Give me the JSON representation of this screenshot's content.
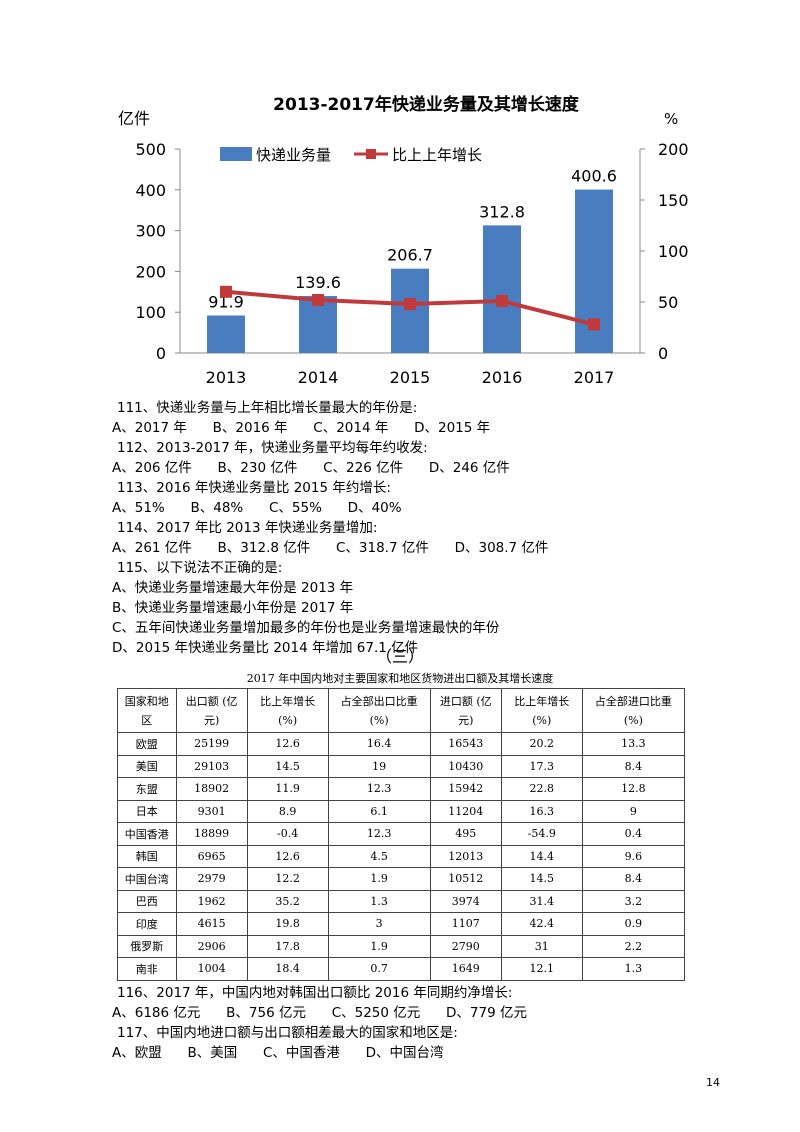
{
  "chart_data": {
    "type": "bar+line",
    "title": "2013-2017年快递业务量及其增长速度",
    "ylabel_left": "亿件",
    "ylabel_right": "%",
    "categories": [
      "2013",
      "2014",
      "2015",
      "2016",
      "2017"
    ],
    "series": [
      {
        "name": "快递业务量",
        "type": "bar",
        "axis": "left",
        "values": [
          91.9,
          139.6,
          206.7,
          312.8,
          400.6
        ],
        "labels": [
          "91.9",
          "139.6",
          "206.7",
          "312.8",
          "400.6"
        ],
        "color": "#4a7cc0"
      },
      {
        "name": "比上上年增长",
        "type": "line",
        "axis": "right",
        "values": [
          60,
          52,
          48,
          51,
          28
        ],
        "color": "#c0393b"
      }
    ],
    "yticks_left": [
      "0",
      "100",
      "200",
      "300",
      "400",
      "500"
    ],
    "yticks_right": [
      "0",
      "50",
      "100",
      "150",
      "200"
    ],
    "ylim_left": [
      0,
      500
    ],
    "ylim_right": [
      0,
      200
    ],
    "legend": "top"
  },
  "questions": [
    {
      "text": "111、快递业务量与上年相比增长量最大的年份是:",
      "indent": true
    },
    {
      "text": "A、2017 年      B、2016 年      C、2014 年      D、2015 年",
      "indent": false
    },
    {
      "text": "112、2013-2017 年，快递业务量平均每年约收发:",
      "indent": true
    },
    {
      "text": "A、206 亿件      B、230 亿件      C、226 亿件      D、246 亿件",
      "indent": false
    },
    {
      "text": "113、2016 年快递业务量比 2015 年约增长:",
      "indent": true
    },
    {
      "text": "A、51%      B、48%      C、55%      D、40%",
      "indent": false
    },
    {
      "text": "114、2017 年比 2013 年快递业务量增加:",
      "indent": true
    },
    {
      "text": "A、261 亿件      B、312.8 亿件      C、318.7 亿件      D、308.7 亿件",
      "indent": false
    },
    {
      "text": "115、以下说法不正确的是:",
      "indent": true
    },
    {
      "text": "A、快递业务量增速最大年份是 2013 年",
      "indent": false
    },
    {
      "text": "B、快递业务量增速最小年份是 2017 年",
      "indent": false
    },
    {
      "text": "C、五年间快递业务量增加最多的年份也是业务量增速最快的年份",
      "indent": false
    },
    {
      "text": "D、2015 年快递业务量比 2014 年增加 67.1 亿件",
      "indent": false
    }
  ],
  "section_label": "（三）",
  "table": {
    "caption": "2017 年中国内地对主要国家和地区货物进出口额及其增长速度",
    "headers": [
      "国家和地区",
      "出口额 (亿元)",
      "比上年增长 (%)",
      "占全部出口比重 (%)",
      "进口额 (亿元)",
      "比上年增长 (%)",
      "占全部进口比重 (%)"
    ],
    "rows": [
      [
        "欧盟",
        "25199",
        "12.6",
        "16.4",
        "16543",
        "20.2",
        "13.3"
      ],
      [
        "美国",
        "29103",
        "14.5",
        "19",
        "10430",
        "17.3",
        "8.4"
      ],
      [
        "东盟",
        "18902",
        "11.9",
        "12.3",
        "15942",
        "22.8",
        "12.8"
      ],
      [
        "日本",
        "9301",
        "8.9",
        "6.1",
        "11204",
        "16.3",
        "9"
      ],
      [
        "中国香港",
        "18899",
        "-0.4",
        "12.3",
        "495",
        "-54.9",
        "0.4"
      ],
      [
        "韩国",
        "6965",
        "12.6",
        "4.5",
        "12013",
        "14.4",
        "9.6"
      ],
      [
        "中国台湾",
        "2979",
        "12.2",
        "1.9",
        "10512",
        "14.5",
        "8.4"
      ],
      [
        "巴西",
        "1962",
        "35.2",
        "1.3",
        "3974",
        "31.4",
        "3.2"
      ],
      [
        "印度",
        "4615",
        "19.8",
        "3",
        "1107",
        "42.4",
        "0.9"
      ],
      [
        "俄罗斯",
        "2906",
        "17.8",
        "1.9",
        "2790",
        "31",
        "2.2"
      ],
      [
        "南非",
        "1004",
        "18.4",
        "0.7",
        "1649",
        "12.1",
        "1.3"
      ]
    ]
  },
  "questions2": [
    {
      "text": "116、2017 年，中国内地对韩国出口额比 2016 年同期约净增长:",
      "indent": true
    },
    {
      "text": "A、6186 亿元      B、756 亿元      C、5250 亿元      D、779 亿元",
      "indent": false
    },
    {
      "text": "117、中国内地进口额与出口额相差最大的国家和地区是:",
      "indent": true
    },
    {
      "text": "A、欧盟      B、美国      C、中国香港      D、中国台湾",
      "indent": false
    }
  ],
  "page_number": "14"
}
